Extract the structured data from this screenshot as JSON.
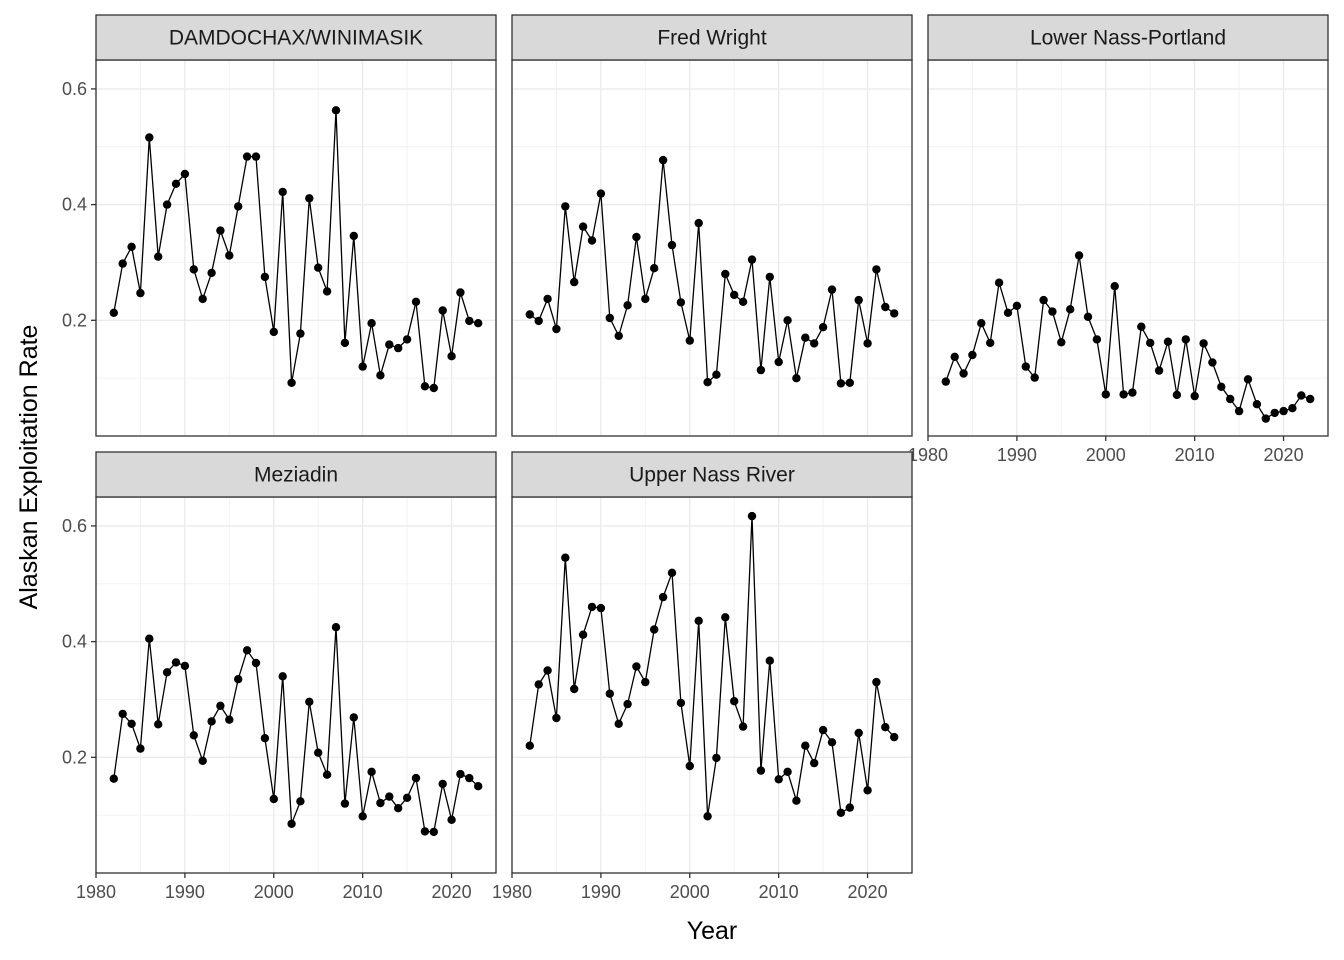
{
  "chart_data": {
    "type": "line",
    "xlabel": "Year",
    "ylabel": "Alaskan Exploitation Rate",
    "xlim": [
      1980,
      2025
    ],
    "ylim": [
      0,
      0.65
    ],
    "x_ticks": [
      1980,
      1990,
      2000,
      2010,
      2020
    ],
    "y_ticks": [
      0.2,
      0.4,
      0.6
    ],
    "y_tick_labels": [
      "0.2",
      "0.4",
      "0.6"
    ],
    "grid": true,
    "x": [
      1982,
      1983,
      1984,
      1985,
      1986,
      1987,
      1988,
      1989,
      1990,
      1991,
      1992,
      1993,
      1994,
      1995,
      1996,
      1997,
      1998,
      1999,
      2000,
      2001,
      2002,
      2003,
      2004,
      2005,
      2006,
      2007,
      2008,
      2009,
      2010,
      2011,
      2012,
      2013,
      2014,
      2015,
      2016,
      2017,
      2018,
      2019,
      2020,
      2021,
      2022,
      2023
    ],
    "panels": [
      {
        "name": "DAMDOCHAX/WINIMASIK",
        "values": [
          0.213,
          0.298,
          0.327,
          0.247,
          0.516,
          0.31,
          0.4,
          0.436,
          0.453,
          0.288,
          0.237,
          0.282,
          0.355,
          0.312,
          0.397,
          0.483,
          0.483,
          0.275,
          0.18,
          0.422,
          0.092,
          0.177,
          0.411,
          0.291,
          0.25,
          0.563,
          0.161,
          0.346,
          0.12,
          0.195,
          0.105,
          0.158,
          0.152,
          0.167,
          0.232,
          0.086,
          0.083,
          0.217,
          0.138,
          0.248,
          0.199,
          0.195
        ]
      },
      {
        "name": "Fred Wright",
        "values": [
          0.21,
          0.199,
          0.237,
          0.185,
          0.397,
          0.266,
          0.362,
          0.338,
          0.419,
          0.204,
          0.173,
          0.226,
          0.344,
          0.237,
          0.29,
          0.477,
          0.33,
          0.231,
          0.165,
          0.368,
          0.093,
          0.106,
          0.28,
          0.244,
          0.232,
          0.305,
          0.114,
          0.275,
          0.128,
          0.2,
          0.1,
          0.17,
          0.16,
          0.188,
          0.253,
          0.091,
          0.092,
          0.235,
          0.16,
          0.288,
          0.223,
          0.212
        ]
      },
      {
        "name": "Lower Nass-Portland",
        "values": [
          0.094,
          0.137,
          0.108,
          0.14,
          0.195,
          0.161,
          0.265,
          0.213,
          0.225,
          0.12,
          0.101,
          0.235,
          0.215,
          0.162,
          0.219,
          0.312,
          0.206,
          0.167,
          0.072,
          0.259,
          0.072,
          0.075,
          0.189,
          0.161,
          0.113,
          0.163,
          0.071,
          0.167,
          0.069,
          0.16,
          0.127,
          0.085,
          0.064,
          0.043,
          0.098,
          0.055,
          0.03,
          0.04,
          0.043,
          0.048,
          0.07,
          0.064
        ]
      },
      {
        "name": "Meziadin",
        "values": [
          0.163,
          0.275,
          0.258,
          0.215,
          0.405,
          0.257,
          0.347,
          0.364,
          0.358,
          0.238,
          0.194,
          0.262,
          0.289,
          0.265,
          0.335,
          0.385,
          0.363,
          0.233,
          0.128,
          0.34,
          0.085,
          0.124,
          0.296,
          0.208,
          0.17,
          0.425,
          0.12,
          0.269,
          0.098,
          0.175,
          0.121,
          0.132,
          0.112,
          0.13,
          0.164,
          0.072,
          0.071,
          0.154,
          0.092,
          0.171,
          0.164,
          0.15
        ]
      },
      {
        "name": "Upper Nass River",
        "values": [
          0.22,
          0.326,
          0.35,
          0.268,
          0.545,
          0.318,
          0.412,
          0.46,
          0.458,
          0.31,
          0.258,
          0.292,
          0.357,
          0.33,
          0.421,
          0.477,
          0.519,
          0.294,
          0.185,
          0.436,
          0.098,
          0.199,
          0.442,
          0.297,
          0.253,
          0.617,
          0.177,
          0.367,
          0.162,
          0.175,
          0.125,
          0.22,
          0.19,
          0.247,
          0.226,
          0.104,
          0.113,
          0.242,
          0.143,
          0.33,
          0.252,
          0.235
        ]
      }
    ]
  }
}
